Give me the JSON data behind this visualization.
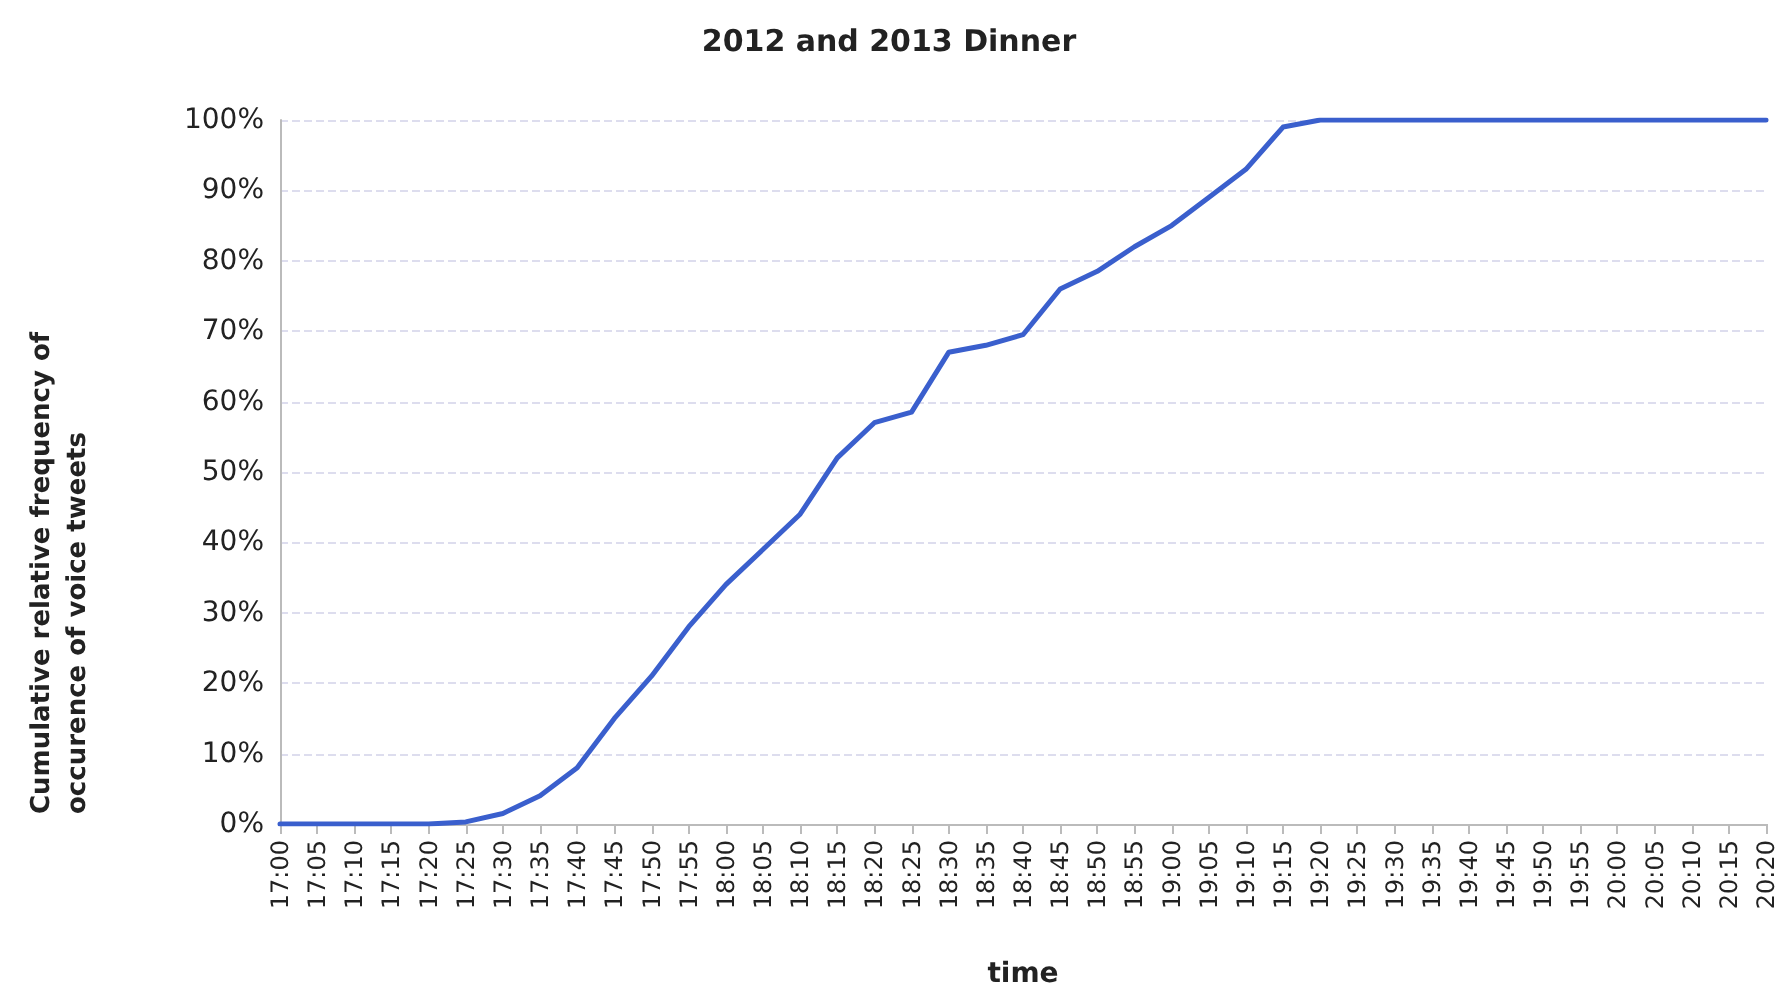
{
  "chart_data": {
    "type": "line",
    "title": "2012 and 2013 Dinner",
    "xlabel": "time",
    "ylabel": "Cumulative relative frequency of occurence of voice tweets",
    "categories": [
      "17:00",
      "17:05",
      "17:10",
      "17:15",
      "17:20",
      "17:25",
      "17:30",
      "17:35",
      "17:40",
      "17:45",
      "17:50",
      "17:55",
      "18:00",
      "18:05",
      "18:10",
      "18:15",
      "18:20",
      "18:25",
      "18:30",
      "18:35",
      "18:40",
      "18:45",
      "18:50",
      "18:55",
      "19:00",
      "19:05",
      "19:10",
      "19:15",
      "19:20",
      "19:25",
      "19:30",
      "19:35",
      "19:40",
      "19:45",
      "19:50",
      "19:55",
      "20:00",
      "20:05",
      "20:10",
      "20:15",
      "20:20"
    ],
    "series": [
      {
        "color": "#3a5fcd",
        "values": [
          0,
          0,
          0,
          0,
          0,
          0.3,
          1.5,
          4,
          8,
          15,
          21,
          28,
          34,
          39,
          44,
          52,
          57,
          58.5,
          67,
          68,
          69.5,
          76,
          78.5,
          82,
          85,
          89,
          93,
          99,
          100,
          100,
          100,
          100,
          100,
          100,
          100,
          100,
          100,
          100,
          100,
          100,
          100
        ]
      }
    ],
    "ylim": [
      0,
      100
    ],
    "yticks": [
      {
        "value": 0,
        "label": "0%"
      },
      {
        "value": 10,
        "label": "10%"
      },
      {
        "value": 20,
        "label": "20%"
      },
      {
        "value": 30,
        "label": "30%"
      },
      {
        "value": 40,
        "label": "40%"
      },
      {
        "value": 50,
        "label": "50%"
      },
      {
        "value": 60,
        "label": "60%"
      },
      {
        "value": 70,
        "label": "70%"
      },
      {
        "value": 80,
        "label": "80%"
      },
      {
        "value": 90,
        "label": "90%"
      },
      {
        "value": 100,
        "label": "100%"
      }
    ],
    "grid": "y",
    "marker": "none",
    "line_style": "solid"
  }
}
